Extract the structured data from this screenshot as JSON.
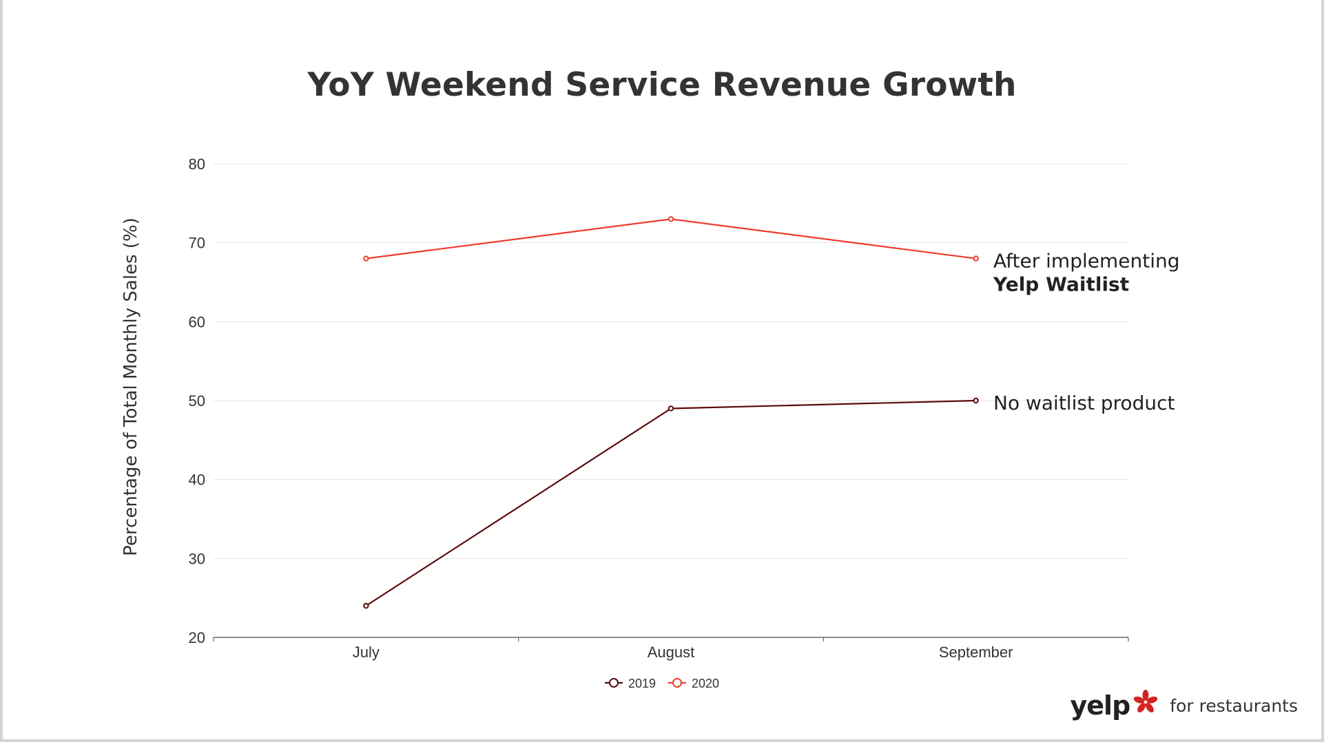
{
  "chart_data": {
    "type": "line",
    "title": "YoY Weekend Service Revenue Growth",
    "xlabel": "",
    "ylabel": "Percentage of Total Monthly Sales (%)",
    "categories": [
      "July",
      "August",
      "September"
    ],
    "ylim": [
      20,
      80
    ],
    "yticks": [
      20,
      30,
      40,
      50,
      60,
      70,
      80
    ],
    "grid": true,
    "legend_position": "bottom-center",
    "series": [
      {
        "name": "2019",
        "values": [
          24,
          49,
          50
        ],
        "color": "#5c0a0a"
      },
      {
        "name": "2020",
        "values": [
          68,
          73,
          68
        ],
        "color": "#ef3b2c"
      }
    ],
    "annotations": [
      {
        "series": "2020",
        "lines": [
          "After implementing",
          "Yelp Waitlist"
        ]
      },
      {
        "series": "2019",
        "lines": [
          "No waitlist product"
        ]
      }
    ]
  },
  "brand": {
    "logo_text": "yelp",
    "tagline": "for restaurants",
    "logo_color": "#d32323"
  }
}
